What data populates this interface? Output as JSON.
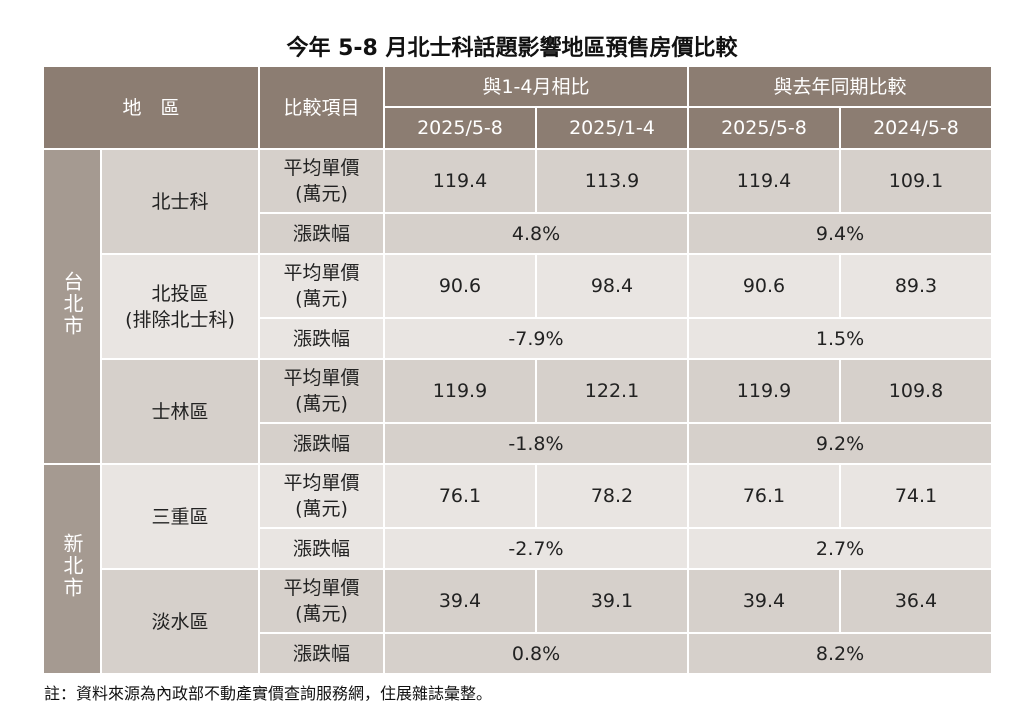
{
  "title": "今年 5-8 月北士科話題影響地區預售房價比較",
  "header": {
    "region": "地　區",
    "item": "比較項目",
    "group1": "與1-4月相比",
    "group2": "與去年同期比較",
    "periods": [
      "2025/5-8",
      "2025/1-4",
      "2025/5-8",
      "2024/5-8"
    ]
  },
  "labels": {
    "price": "平均單價",
    "price_unit": "(萬元)",
    "change": "漲跌幅"
  },
  "cities": [
    {
      "name": "台北市",
      "districts": [
        {
          "name": "北士科",
          "sub": "",
          "prices": [
            "119.4",
            "113.9",
            "119.4",
            "109.1"
          ],
          "change1": "4.8%",
          "change2": "9.4%"
        },
        {
          "name": "北投區",
          "sub": "(排除北士科)",
          "prices": [
            "90.6",
            "98.4",
            "90.6",
            "89.3"
          ],
          "change1": "-7.9%",
          "change2": "1.5%"
        },
        {
          "name": "士林區",
          "sub": "",
          "prices": [
            "119.9",
            "122.1",
            "119.9",
            "109.8"
          ],
          "change1": "-1.8%",
          "change2": "9.2%"
        }
      ]
    },
    {
      "name": "新北市",
      "districts": [
        {
          "name": "三重區",
          "sub": "",
          "prices": [
            "76.1",
            "78.2",
            "76.1",
            "74.1"
          ],
          "change1": "-2.7%",
          "change2": "2.7%"
        },
        {
          "name": "淡水區",
          "sub": "",
          "prices": [
            "39.4",
            "39.1",
            "39.4",
            "36.4"
          ],
          "change1": "0.8%",
          "change2": "8.2%"
        }
      ]
    }
  ],
  "note": "註：資料來源為內政部不動產實價查詢服務網，住展雜誌彙整。",
  "colors": {
    "header": "#8c7d72",
    "city": "#a59a91",
    "dark_row": "#d6d0cb",
    "light_row": "#e9e5e2"
  }
}
